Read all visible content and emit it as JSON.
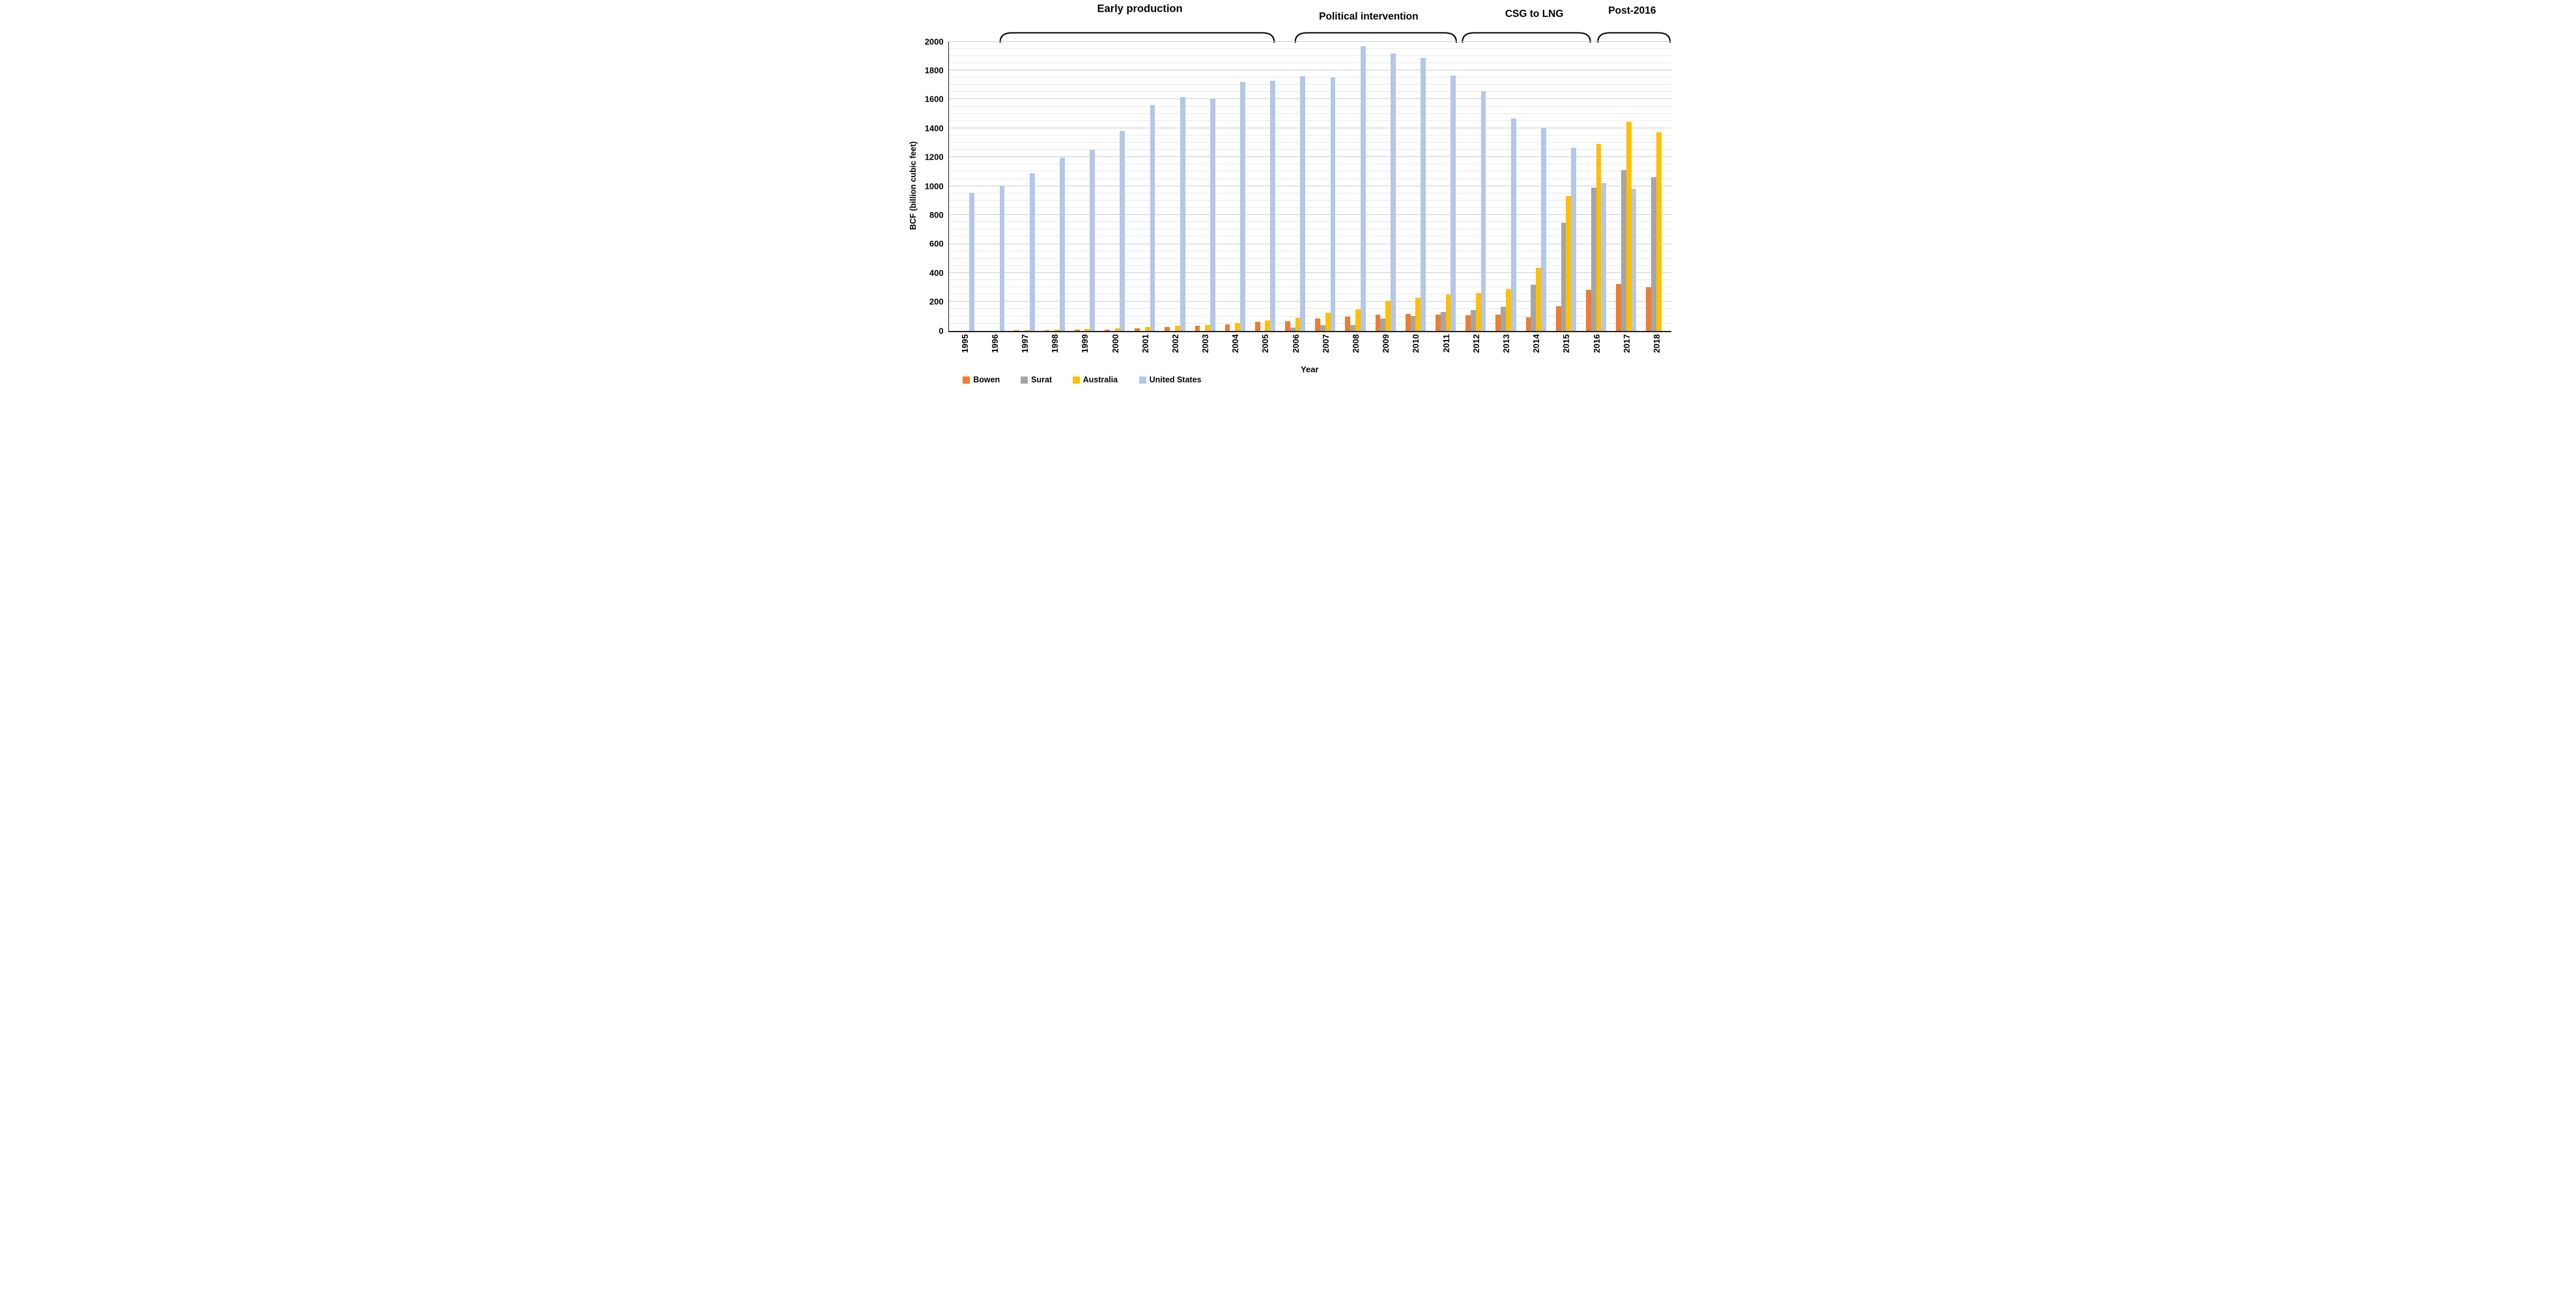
{
  "figure": {
    "annotations": [
      {
        "label": "Early production",
        "start_year": 1997,
        "end_year": 2005
      },
      {
        "label": "Political intervention",
        "start_year": 2006,
        "end_year": 2011
      },
      {
        "label": "CSG to LNG",
        "start_year": 2012,
        "end_year": 2016
      },
      {
        "label": "Post-2016",
        "start_year": 2017,
        "end_year": 2018
      }
    ],
    "y_axis": {
      "title": "BCF (billion cubic feet)",
      "min": 0,
      "max": 2000,
      "major_step": 200,
      "minor_step": 50,
      "tick_labels": [
        "0",
        "200",
        "400",
        "600",
        "800",
        "1000",
        "1200",
        "1400",
        "1600",
        "1800",
        "2000"
      ]
    },
    "x_axis": {
      "title": "Year"
    },
    "legend": [
      "Bowen",
      "Surat",
      "Australia",
      "United States"
    ],
    "colors": {
      "bowen": "#ED7D31",
      "surat": "#A5A5A5",
      "australia": "#FFC000",
      "united_states": "#B4C7E7",
      "axis": "#262626",
      "gridline_minor": "#e9e9e9",
      "gridline_major": "#cfcfcf",
      "annotation": "#000000"
    }
  },
  "chart_data": {
    "type": "bar",
    "title": "",
    "xlabel": "Year",
    "ylabel": "BCF (billion cubic feet)",
    "ylim": [
      0,
      2000
    ],
    "grid": true,
    "legend_position": "bottom-left",
    "categories": [
      "1995",
      "1996",
      "1997",
      "1998",
      "1999",
      "2000",
      "2001",
      "2002",
      "2003",
      "2004",
      "2005",
      "2006",
      "2007",
      "2008",
      "2009",
      "2010",
      "2011",
      "2012",
      "2013",
      "2014",
      "2015",
      "2016",
      "2017",
      "2018"
    ],
    "series": [
      {
        "name": "Bowen",
        "color": "#ED7D31",
        "values": [
          0,
          0,
          2,
          5,
          6,
          8,
          16,
          28,
          33,
          42,
          60,
          66,
          84,
          96,
          111,
          114,
          112,
          108,
          112,
          92,
          170,
          283,
          325,
          302
        ]
      },
      {
        "name": "Surat",
        "color": "#A5A5A5",
        "values": [
          0,
          0,
          0,
          0,
          0,
          0,
          0,
          0,
          0,
          0,
          0,
          20,
          39,
          41,
          86,
          104,
          131,
          143,
          165,
          320,
          745,
          990,
          1110,
          1060
        ]
      },
      {
        "name": "Australia",
        "color": "#FFC000",
        "values": [
          0,
          0,
          5,
          10,
          12,
          18,
          26,
          36,
          41,
          52,
          70,
          90,
          124,
          149,
          208,
          229,
          249,
          258,
          288,
          435,
          930,
          1290,
          1445,
          1372
        ]
      },
      {
        "name": "United States",
        "color": "#B4C7E7",
        "values": [
          955,
          1000,
          1090,
          1195,
          1250,
          1380,
          1560,
          1615,
          1600,
          1720,
          1730,
          1760,
          1750,
          1965,
          1915,
          1885,
          1765,
          1655,
          1465,
          1405,
          1265,
          1020,
          980,
          null
        ]
      }
    ]
  }
}
